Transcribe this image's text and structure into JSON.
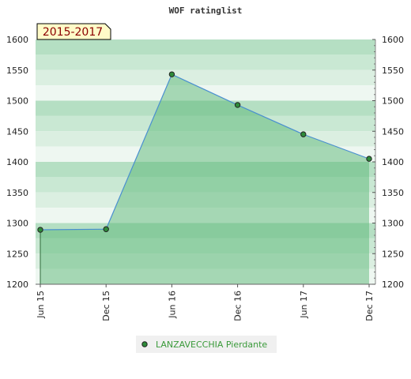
{
  "chart_data": {
    "type": "area",
    "title": "WOF ratinglist",
    "period_label": "2015-2017",
    "x": [
      "Jun 15",
      "Dec 15",
      "Jun 16",
      "Dec 16",
      "Jun 17",
      "Dec 17"
    ],
    "series": [
      {
        "name": "LANZAVECCHIA Pierdante",
        "values": [
          1289,
          1290,
          1543,
          1493,
          1445,
          1405
        ]
      }
    ],
    "yticks": [
      1200,
      1250,
      1300,
      1350,
      1400,
      1450,
      1500,
      1550,
      1600
    ],
    "ylim": [
      1200,
      1600
    ],
    "grid": true,
    "legend_position": "bottom-center",
    "colors": {
      "area_fill": "#5cb878",
      "line": "#4a8fd0",
      "point_fill": "#2e8b3a",
      "legend_text": "#3a9a3a",
      "period_box_fill": "#fffbc8",
      "period_text": "#8b0000"
    }
  }
}
